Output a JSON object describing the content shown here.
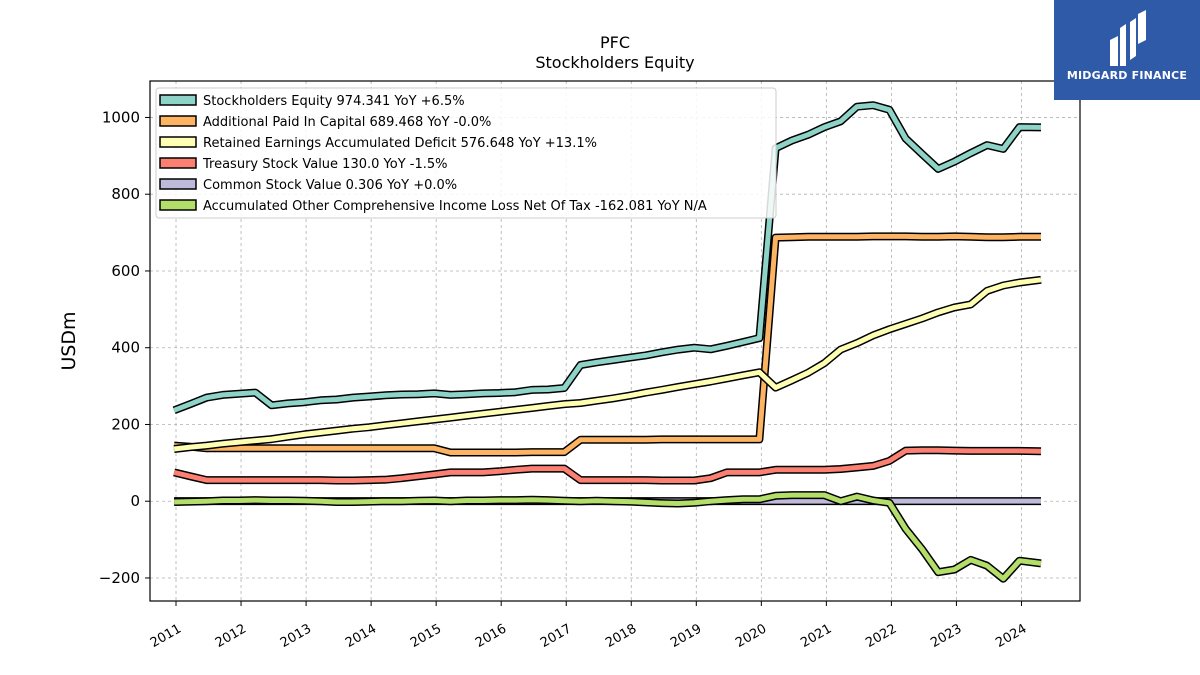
{
  "brand": {
    "name": "MIDGARD FINANCE",
    "color": "#2f5aa8"
  },
  "chart_data": {
    "type": "line",
    "title": "PFC",
    "subtitle": "Stockholders  Equity",
    "ylabel": "USDm",
    "xlabel": "",
    "ylim": [
      -260,
      1095
    ],
    "xlim": [
      2010.6,
      2024.9
    ],
    "yticks": [
      -200,
      0,
      200,
      400,
      600,
      800,
      1000
    ],
    "xticks": [
      2011,
      2012,
      2013,
      2014,
      2015,
      2016,
      2017,
      2018,
      2019,
      2020,
      2021,
      2022,
      2023,
      2024
    ],
    "xtick_labels": [
      "2011",
      "2012",
      "2013",
      "2014",
      "2015",
      "2016",
      "2017",
      "2018",
      "2019",
      "2020",
      "2021",
      "2022",
      "2023",
      "2024"
    ],
    "ytick_labels": [
      "−200",
      "0",
      "200",
      "400",
      "600",
      "800",
      "1000"
    ],
    "grid": true,
    "legend_position": "upper-left",
    "x": [
      2010.97,
      2011.22,
      2011.47,
      2011.72,
      2011.97,
      2012.22,
      2012.47,
      2012.72,
      2012.97,
      2013.22,
      2013.47,
      2013.72,
      2013.97,
      2014.22,
      2014.47,
      2014.72,
      2014.97,
      2015.22,
      2015.47,
      2015.72,
      2015.97,
      2016.22,
      2016.47,
      2016.72,
      2016.97,
      2017.22,
      2017.47,
      2017.72,
      2017.97,
      2018.22,
      2018.47,
      2018.72,
      2018.97,
      2019.22,
      2019.47,
      2019.72,
      2019.97,
      2020.22,
      2020.47,
      2020.72,
      2020.97,
      2021.22,
      2021.47,
      2021.72,
      2021.97,
      2022.22,
      2022.47,
      2022.72,
      2022.97,
      2023.22,
      2023.47,
      2023.72,
      2023.97,
      2024.3
    ],
    "series": [
      {
        "name": "Stockholders Equity  974.341 YoY +6.5%",
        "color": "#8dd3c7",
        "values": [
          237,
          253,
          270,
          277,
          280,
          283,
          250,
          255,
          258,
          263,
          265,
          270,
          273,
          276,
          278,
          279,
          281,
          277,
          279,
          281,
          282,
          284,
          290,
          291,
          295,
          355,
          362,
          368,
          374,
          380,
          388,
          395,
          400,
          396,
          405,
          415,
          425,
          920,
          940,
          955,
          975,
          990,
          1028,
          1032,
          1020,
          945,
          905,
          866,
          885,
          907,
          928,
          918,
          975,
          974
        ]
      },
      {
        "name": "Additional Paid In Capital  689.468 YoY -0.0%",
        "color": "#fdb462",
        "values": [
          145,
          142,
          138,
          138,
          138,
          138,
          138,
          138,
          138,
          138,
          138,
          138,
          138,
          138,
          138,
          138,
          138,
          127,
          127,
          127,
          127,
          127,
          128,
          128,
          128,
          160,
          160,
          160,
          160,
          160,
          161,
          161,
          161,
          161,
          161,
          161,
          161,
          687,
          688,
          689,
          689,
          689,
          689,
          690,
          690,
          690,
          689,
          689,
          690,
          689,
          688,
          688,
          689,
          689
        ]
      },
      {
        "name": "Retained Earnings Accumulated Deficit  576.648 YoY +13.1%",
        "color": "#ffffb3",
        "values": [
          136,
          141,
          145,
          150,
          154,
          158,
          162,
          168,
          174,
          179,
          184,
          189,
          193,
          198,
          203,
          208,
          213,
          218,
          223,
          228,
          233,
          238,
          243,
          248,
          253,
          256,
          262,
          268,
          275,
          283,
          290,
          298,
          305,
          312,
          320,
          328,
          336,
          296,
          315,
          335,
          360,
          395,
          412,
          432,
          448,
          462,
          476,
          492,
          505,
          513,
          548,
          562,
          570,
          577
        ]
      },
      {
        "name": "Treasury Stock Value  130.0 YoY -1.5%",
        "color": "#fb8072",
        "values": [
          75,
          65,
          55,
          55,
          55,
          55,
          55,
          55,
          55,
          55,
          54,
          54,
          55,
          56,
          60,
          65,
          70,
          75,
          75,
          75,
          78,
          82,
          85,
          85,
          85,
          55,
          55,
          55,
          55,
          55,
          54,
          54,
          54,
          60,
          75,
          75,
          75,
          82,
          82,
          82,
          82,
          84,
          88,
          92,
          105,
          132,
          133,
          133,
          132,
          131,
          131,
          131,
          131,
          130
        ]
      },
      {
        "name": "Common Stock Value  0.306 YoY +0.0%",
        "color": "#bebada",
        "values": [
          0.3,
          0.3,
          0.3,
          0.3,
          0.3,
          0.3,
          0.3,
          0.3,
          0.3,
          0.3,
          0.3,
          0.3,
          0.3,
          0.3,
          0.3,
          0.3,
          0.3,
          0.3,
          0.3,
          0.3,
          0.3,
          0.3,
          0.3,
          0.3,
          0.3,
          0.3,
          0.3,
          0.3,
          0.3,
          0.3,
          0.3,
          0.3,
          0.3,
          0.3,
          0.3,
          0.3,
          0.3,
          0.3,
          0.3,
          0.3,
          0.3,
          0.3,
          0.3,
          0.3,
          0.3,
          0.3,
          0.3,
          0.3,
          0.3,
          0.3,
          0.3,
          0.3,
          0.3,
          0.3
        ]
      },
      {
        "name": "Accumulated Other Comprehensive Income Loss Net Of Tax  -162.081 YoY N/A",
        "color": "#b3de69",
        "values": [
          -2,
          -1,
          0,
          2,
          2,
          3,
          2,
          2,
          1,
          0,
          -2,
          -2,
          -1,
          0,
          0,
          1,
          2,
          0,
          2,
          2,
          3,
          3,
          4,
          3,
          1,
          0,
          1,
          0,
          -1,
          -3,
          -5,
          -6,
          -4,
          0,
          3,
          5,
          5,
          14,
          16,
          16,
          16,
          0,
          12,
          2,
          -4,
          -72,
          -125,
          -185,
          -178,
          -153,
          -168,
          -202,
          -155,
          -162
        ]
      }
    ]
  }
}
